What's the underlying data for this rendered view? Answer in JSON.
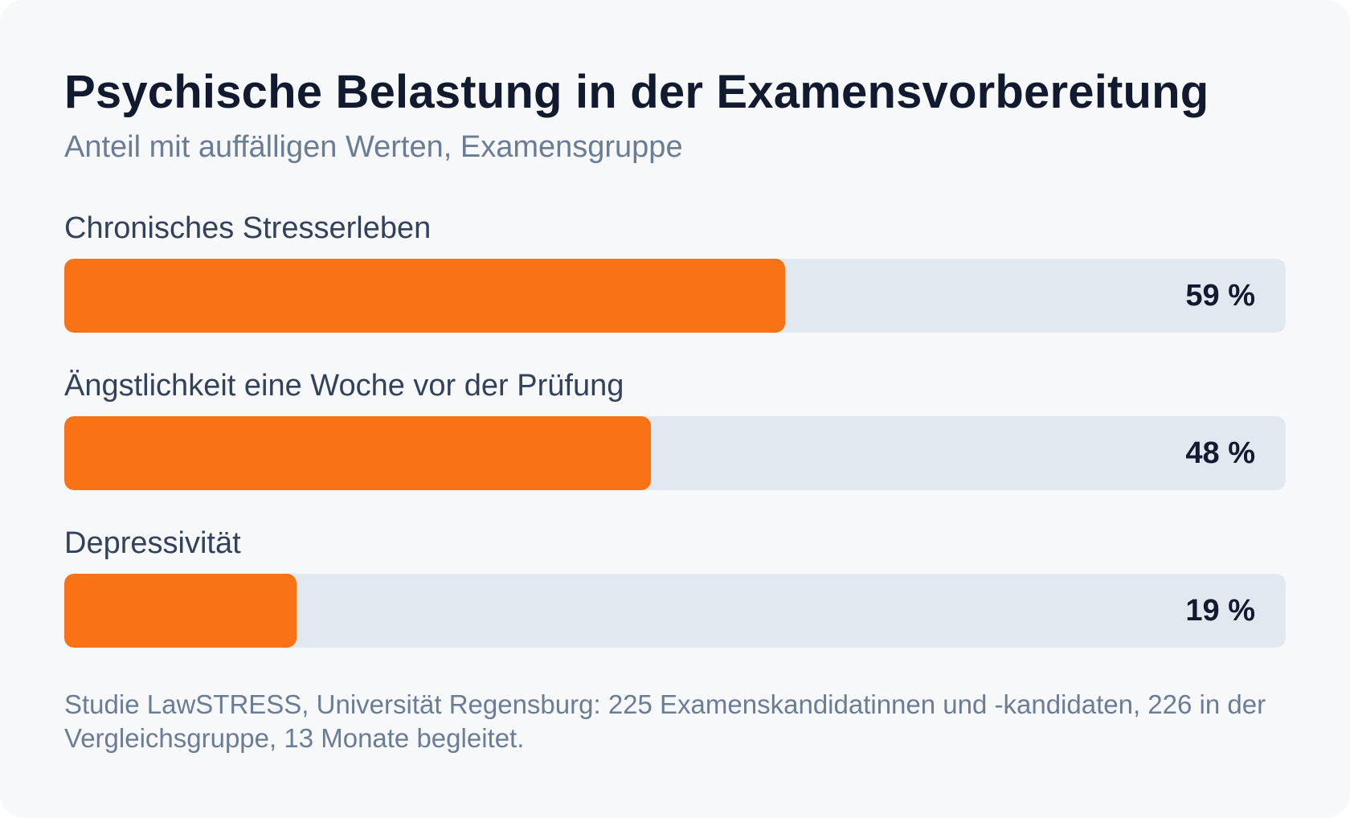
{
  "title": "Psychische Belastung in der Examensvorbereitung",
  "subtitle": "Anteil mit auffälligen Werten, Examensgruppe",
  "footnote": "Studie LawSTRESS, Universität Regensburg: 225 Examenskandidatinnen und -kandidaten, 226 in der Vergleichsgruppe, 13 Monate begleitet.",
  "colors": {
    "bar": "#f97316",
    "track": "#e2e8f0",
    "background": "#f7f8fa"
  },
  "chart_data": {
    "type": "bar",
    "orientation": "horizontal",
    "title": "Psychische Belastung in der Examensvorbereitung",
    "subtitle": "Anteil mit auffälligen Werten, Examensgruppe",
    "categories": [
      "Chronisches Stresserleben",
      "Ängstlichkeit eine Woche vor der Prüfung",
      "Depressivität"
    ],
    "values": [
      59,
      48,
      19
    ],
    "value_labels": [
      "59 %",
      "48 %",
      "19 %"
    ],
    "unit": "%",
    "xlim": [
      0,
      100
    ],
    "grid": false,
    "legend": "none"
  }
}
